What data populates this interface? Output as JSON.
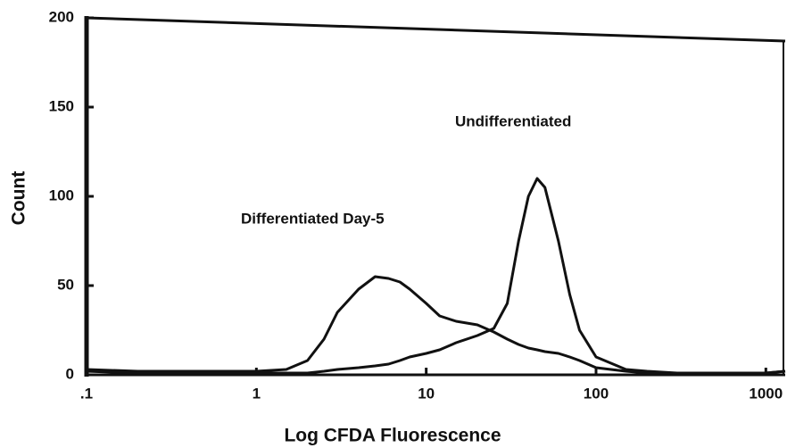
{
  "chart_data": {
    "type": "line",
    "x_label": "Log CFDA Fluorescence",
    "y_label": "Count",
    "annotations": [
      "Undifferentiated",
      "Differentiated Day-5"
    ],
    "xscale": "log",
    "xlim": [
      0.1,
      1300
    ],
    "ylim": [
      0,
      200
    ],
    "xticks": [
      {
        "value": 0.1,
        "label": ".1"
      },
      1,
      10,
      100,
      1000
    ],
    "yticks": [
      0,
      50,
      100,
      150,
      200
    ],
    "grid": false,
    "x": [
      0.1,
      0.2,
      0.5,
      1,
      1.5,
      2,
      2.5,
      3,
      4,
      5,
      6,
      7,
      8,
      10,
      12,
      15,
      20,
      25,
      30,
      35,
      40,
      45,
      50,
      60,
      70,
      80,
      100,
      150,
      200,
      300,
      500,
      1000,
      1300
    ],
    "series": [
      {
        "name": "Differentiated Day-5",
        "color": "#111111",
        "values": [
          3,
          2,
          2,
          2,
          3,
          8,
          20,
          35,
          48,
          55,
          54,
          52,
          48,
          40,
          33,
          30,
          28,
          24,
          20,
          17,
          15,
          14,
          13,
          12,
          10,
          8,
          4,
          2,
          1,
          1,
          1,
          1,
          2
        ]
      },
      {
        "name": "Undifferentiated",
        "color": "#111111",
        "values": [
          2,
          1,
          1,
          1,
          1,
          1,
          2,
          3,
          4,
          5,
          6,
          8,
          10,
          12,
          14,
          18,
          22,
          26,
          40,
          75,
          100,
          110,
          105,
          75,
          45,
          25,
          10,
          3,
          2,
          1,
          1,
          1,
          2
        ]
      }
    ]
  }
}
